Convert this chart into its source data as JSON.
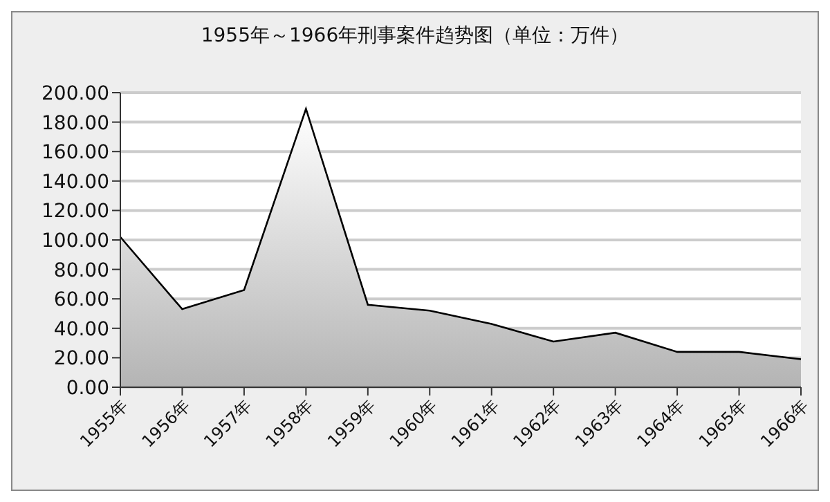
{
  "chart_data": {
    "type": "area",
    "title": "1955年～1966年刑事案件趋势图（单位：万件）",
    "categories": [
      "1955年",
      "1956年",
      "1957年",
      "1958年",
      "1959年",
      "1960年",
      "1961年",
      "1962年",
      "1963年",
      "1964年",
      "1965年",
      "1966年"
    ],
    "series": [
      {
        "color": "#b4b4b4",
        "values": [
          102,
          53,
          66,
          189,
          56,
          52,
          43,
          31,
          37,
          24,
          24,
          19
        ]
      }
    ],
    "ylim": [
      0,
      200
    ],
    "yticks": [
      {
        "value": 0,
        "label": "0.00"
      },
      {
        "value": 20,
        "label": "20.00"
      },
      {
        "value": 40,
        "label": "40.00"
      },
      {
        "value": 60,
        "label": "60.00"
      },
      {
        "value": 80,
        "label": "80.00"
      },
      {
        "value": 100,
        "label": "100.00"
      },
      {
        "value": 120,
        "label": "120.00"
      },
      {
        "value": 140,
        "label": "140.00"
      },
      {
        "value": 160,
        "label": "160.00"
      },
      {
        "value": 180,
        "label": "180.00"
      },
      {
        "value": 200,
        "label": "200.00"
      }
    ],
    "grid": "y",
    "legend": false
  }
}
